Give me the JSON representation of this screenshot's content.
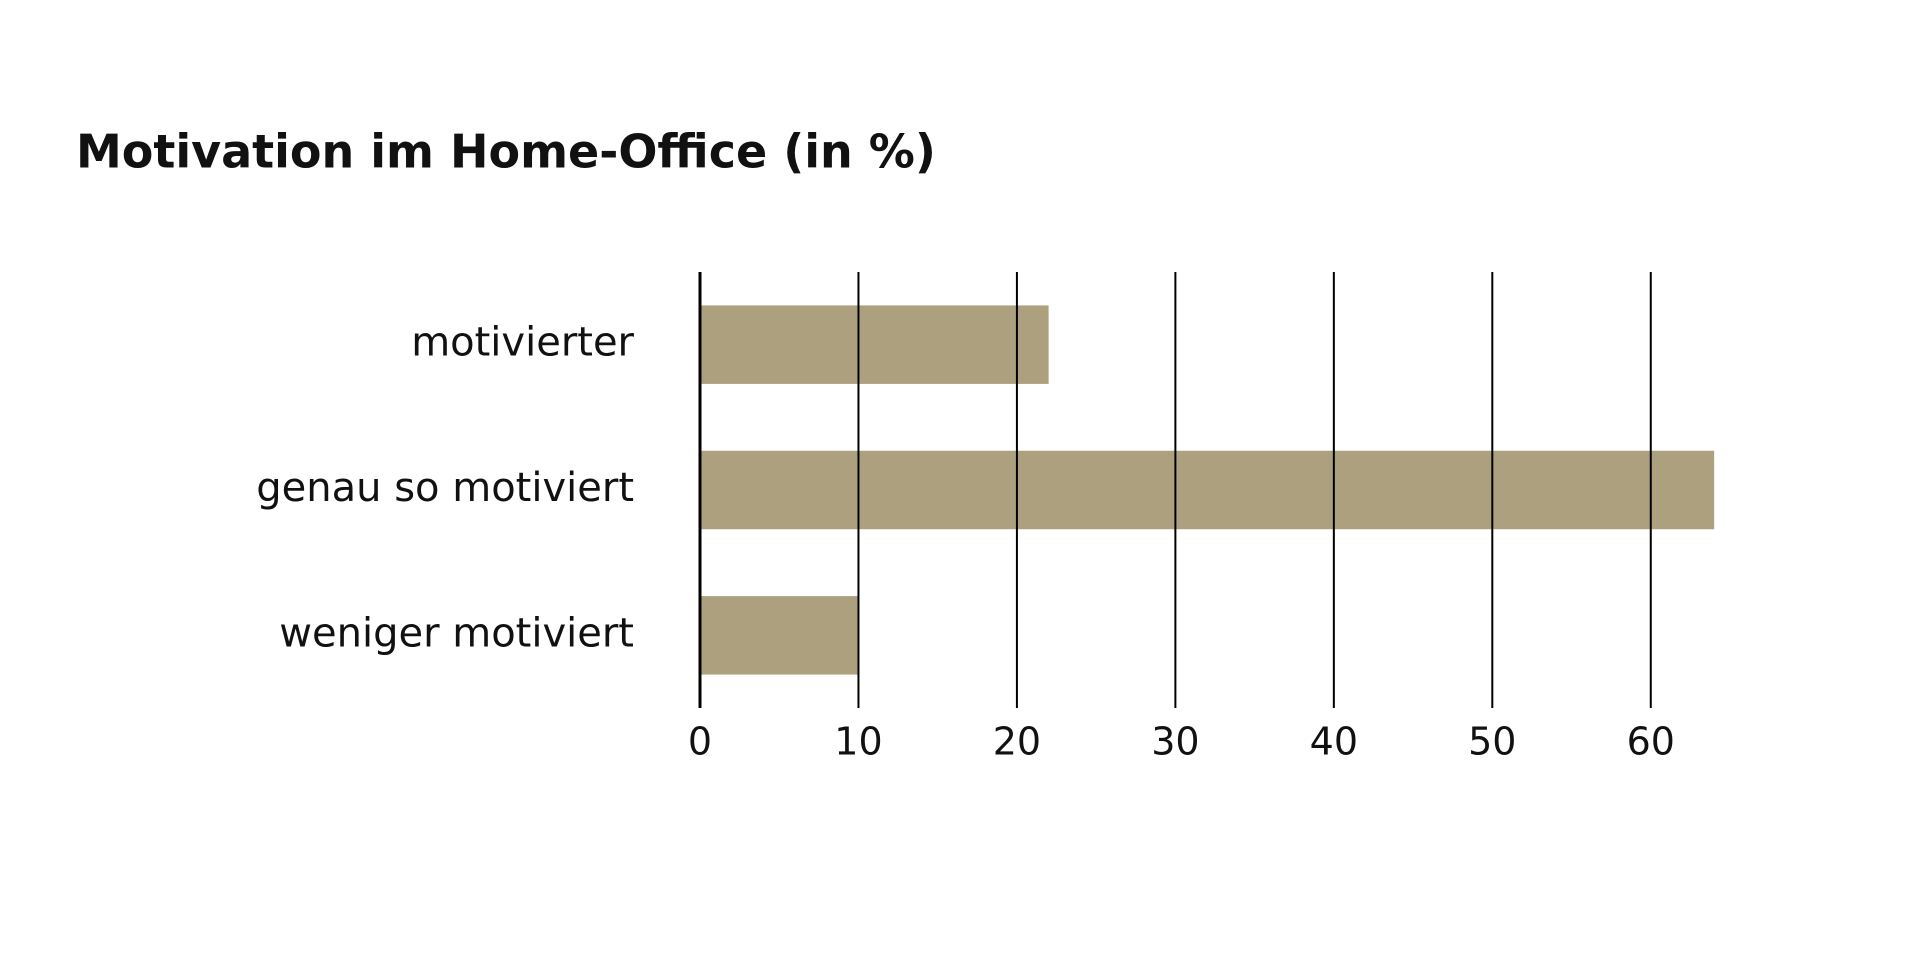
{
  "chart_data": {
    "type": "hbar",
    "title": "Motivation im Home-Office (in %)",
    "categories": [
      "motivierter",
      "genau so motiviert",
      "weniger motiviert"
    ],
    "values": [
      22,
      64,
      10
    ],
    "color": "#ada07e",
    "xlim": [
      0,
      65
    ],
    "xticks": [
      0,
      10,
      20,
      30,
      40,
      50,
      60
    ],
    "grid": true
  }
}
